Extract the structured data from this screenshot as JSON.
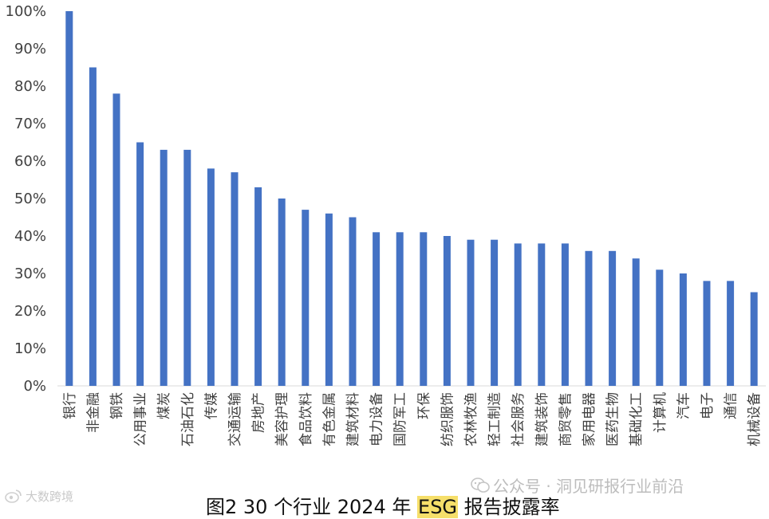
{
  "chart_data": {
    "type": "bar",
    "categories": [
      "银行",
      "非金融",
      "钢铁",
      "公用事业",
      "煤炭",
      "石油石化",
      "传媒",
      "交通运输",
      "房地产",
      "美容护理",
      "食品饮料",
      "有色金属",
      "建筑材料",
      "电力设备",
      "国防军工",
      "环保",
      "纺织服饰",
      "农林牧渔",
      "轻工制造",
      "社会服务",
      "建筑装饰",
      "商贸零售",
      "家用电器",
      "医药生物",
      "基础化工",
      "计算机",
      "汽车",
      "电子",
      "通信",
      "机械设备"
    ],
    "values": [
      100,
      85,
      78,
      65,
      63,
      63,
      58,
      57,
      53,
      50,
      47,
      46,
      45,
      41,
      41,
      41,
      40,
      39,
      39,
      38,
      38,
      38,
      36,
      36,
      34,
      31,
      30,
      28,
      28,
      25
    ],
    "ylim": [
      0,
      100
    ],
    "yticks": [
      "0%",
      "10%",
      "20%",
      "30%",
      "40%",
      "50%",
      "60%",
      "70%",
      "80%",
      "90%",
      "100%"
    ],
    "bar_color": "#4472C4",
    "grid": false,
    "legend": "none"
  },
  "caption": {
    "before": "图2 30 个行业 2024 年 ",
    "highlight": "ESG",
    "after": " 报告披露率"
  },
  "watermarks": {
    "left": "大数跨境",
    "right": "公众号 · 洞见研报行业前沿"
  }
}
